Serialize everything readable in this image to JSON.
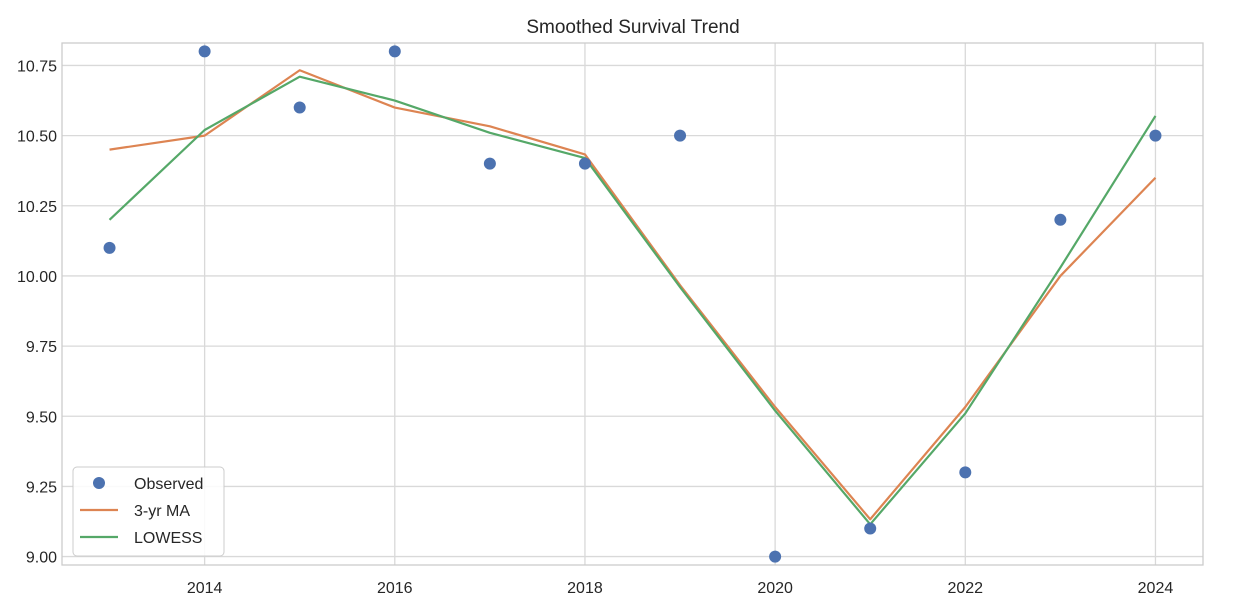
{
  "chart_data": {
    "type": "line",
    "title": "Smoothed Survival Trend",
    "xlabel": "",
    "ylabel": "",
    "x": [
      2013,
      2014,
      2015,
      2016,
      2017,
      2018,
      2019,
      2020,
      2021,
      2022,
      2023,
      2024
    ],
    "xlim": [
      2012.5,
      2024.5
    ],
    "ylim": [
      8.97,
      10.83
    ],
    "x_ticks": [
      2014,
      2016,
      2018,
      2020,
      2022,
      2024
    ],
    "x_tick_labels": [
      "2014",
      "2016",
      "2018",
      "2020",
      "2022",
      "2024"
    ],
    "y_ticks": [
      9.0,
      9.25,
      9.5,
      9.75,
      10.0,
      10.25,
      10.5,
      10.75
    ],
    "y_tick_labels": [
      "9.00",
      "9.25",
      "9.50",
      "9.75",
      "10.00",
      "10.25",
      "10.50",
      "10.75"
    ],
    "grid": true,
    "legend_position": "lower-left",
    "series": [
      {
        "name": "Observed",
        "style": "markers",
        "color": "#4c72b0",
        "values": [
          10.1,
          10.8,
          10.6,
          10.8,
          10.4,
          10.4,
          10.5,
          9.0,
          9.1,
          9.3,
          10.2,
          10.5
        ]
      },
      {
        "name": "3-yr MA",
        "style": "line",
        "color": "#dd8452",
        "values": [
          10.45,
          10.5,
          10.733,
          10.6,
          10.533,
          10.433,
          9.967,
          9.533,
          9.133,
          9.533,
          10.0,
          10.35
        ]
      },
      {
        "name": "LOWESS",
        "style": "line",
        "color": "#55a868",
        "values": [
          10.2,
          10.52,
          10.71,
          10.625,
          10.51,
          10.42,
          9.96,
          9.52,
          9.115,
          9.51,
          10.03,
          10.57
        ]
      }
    ]
  }
}
